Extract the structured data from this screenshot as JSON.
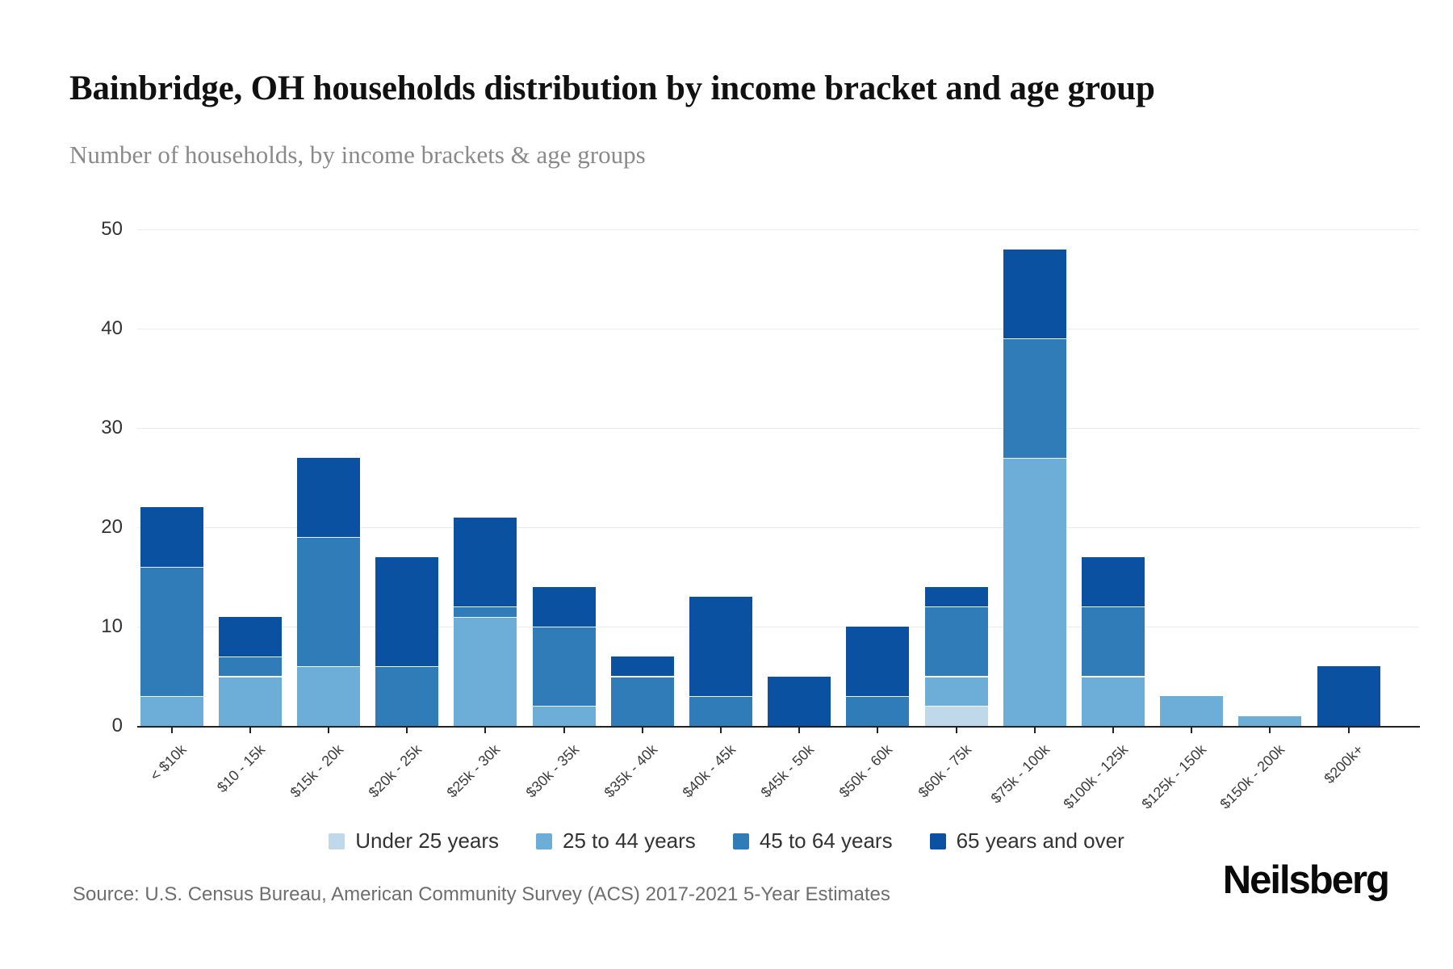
{
  "header": {
    "title": "Bainbridge, OH households distribution by income bracket and age group",
    "subtitle": "Number of households, by income brackets & age groups"
  },
  "footer": {
    "source": "Source: U.S. Census Bureau, American Community Survey (ACS) 2017-2021 5-Year Estimates",
    "brand": "Neilsberg"
  },
  "colors": {
    "under_25": "#bfd8ea",
    "age_25_44": "#6caed8",
    "age_45_64": "#2f7cb9",
    "age_65_over": "#0a52a1",
    "axis_line": "#222222",
    "gridline": "#ebebeb",
    "tick_text": "#333333"
  },
  "chart_data": {
    "type": "bar",
    "stacked": true,
    "grid": true,
    "legend_position": "bottom",
    "title": "Bainbridge, OH households distribution by income bracket and age group",
    "xlabel": "",
    "ylabel": "Number of households",
    "ylim": [
      0,
      50
    ],
    "yticks": [
      0,
      10,
      20,
      30,
      40,
      50
    ],
    "categories": [
      "< $10k",
      "$10 - 15k",
      "$15k - 20k",
      "$20k - 25k",
      "$25k - 30k",
      "$30k - 35k",
      "$35k - 40k",
      "$40k - 45k",
      "$45k - 50k",
      "$50k - 60k",
      "$60k - 75k",
      "$75k - 100k",
      "$100k - 125k",
      "$125k - 150k",
      "$150k - 200k",
      "$200k+"
    ],
    "series": [
      {
        "name": "Under 25 years",
        "color": "#bfd8ea",
        "values": [
          0,
          0,
          0,
          0,
          0,
          0,
          0,
          0,
          0,
          0,
          2,
          0,
          0,
          0,
          0,
          0
        ]
      },
      {
        "name": "25 to 44 years",
        "color": "#6caed8",
        "values": [
          3,
          5,
          6,
          0,
          11,
          2,
          0,
          0,
          0,
          0,
          3,
          27,
          5,
          3,
          1,
          0
        ]
      },
      {
        "name": "45 to 64 years",
        "color": "#2f7cb9",
        "values": [
          13,
          2,
          13,
          6,
          1,
          8,
          5,
          3,
          0,
          3,
          7,
          12,
          7,
          0,
          0,
          0
        ]
      },
      {
        "name": "65 years and over",
        "color": "#0a52a1",
        "values": [
          6,
          4,
          8,
          11,
          9,
          4,
          2,
          10,
          5,
          7,
          2,
          9,
          5,
          0,
          0,
          6
        ]
      }
    ],
    "totals": [
      22,
      11,
      27,
      17,
      21,
      14,
      7,
      13,
      5,
      10,
      14,
      48,
      17,
      3,
      1,
      6
    ]
  }
}
